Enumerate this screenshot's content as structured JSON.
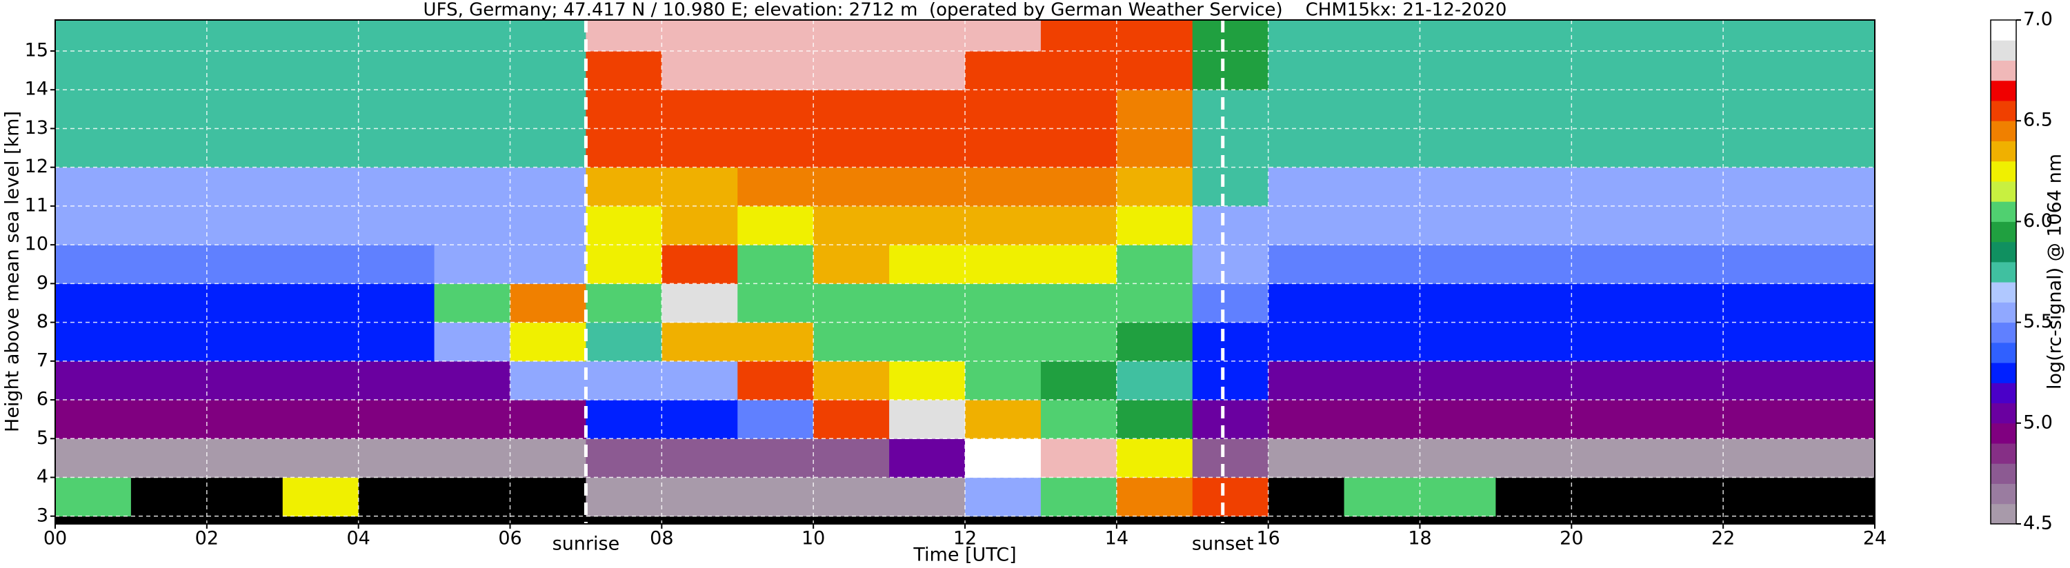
{
  "chart_data": {
    "type": "heatmap",
    "title": "UFS, Germany; 47.417 N / 10.980 E; elevation: 2712 m  (operated by German Weather Service)    CHM15kx: 21-12-2020",
    "x_label": "Time [UTC]",
    "y_label": "Height above mean sea level [km]",
    "colorbar_label": "log(rc-signal) @ 1064 nm",
    "xlim": [
      0,
      24
    ],
    "ylim": [
      2.8,
      15.8
    ],
    "xticks": [
      {
        "value": 0,
        "label": "00"
      },
      {
        "value": 2,
        "label": "02"
      },
      {
        "value": 4,
        "label": "04"
      },
      {
        "value": 6,
        "label": "06"
      },
      {
        "value": 8,
        "label": "08"
      },
      {
        "value": 10,
        "label": "10"
      },
      {
        "value": 12,
        "label": "12"
      },
      {
        "value": 14,
        "label": "14"
      },
      {
        "value": 16,
        "label": "16"
      },
      {
        "value": 18,
        "label": "18"
      },
      {
        "value": 20,
        "label": "20"
      },
      {
        "value": 22,
        "label": "22"
      },
      {
        "value": 24,
        "label": "24"
      }
    ],
    "yticks": [
      3,
      4,
      5,
      6,
      7,
      8,
      9,
      10,
      11,
      12,
      13,
      14,
      15
    ],
    "grid": true,
    "clim": [
      4.5,
      7
    ],
    "cticks": [
      4.5,
      {
        "value": 5,
        "label": "5.0"
      },
      5.5,
      {
        "value": 6,
        "label": "6.0"
      },
      6.5,
      {
        "value": 7,
        "label": "7.0"
      }
    ],
    "under_color": "#000000",
    "colormap": [
      "#a89aaa",
      "#9a7ca0",
      "#8c5a92",
      "#862f86",
      "#800080",
      "#6a00a0",
      "#4a00c8",
      "#0020ff",
      "#3060ff",
      "#6080ff",
      "#90a8ff",
      "#b0c8ff",
      "#40c0a0",
      "#109060",
      "#20a040",
      "#50d070",
      "#c8f040",
      "#f0f000",
      "#f0b000",
      "#f08000",
      "#f04000",
      "#f00000",
      "#f0b8b8",
      "#e0e0e0",
      "#ffffff"
    ],
    "annotations": [
      {
        "label": "sunrise",
        "x": 7.0
      },
      {
        "label": "sunset",
        "x": 15.4
      }
    ],
    "x": [
      0.5,
      1.5,
      2.5,
      3.5,
      4.5,
      5.5,
      6.5,
      7.5,
      8.5,
      9.5,
      10.5,
      11.5,
      12.5,
      13.5,
      14.5,
      15.5,
      16.5,
      17.5,
      18.5,
      19.5,
      20.5,
      21.5,
      22.5,
      23.5
    ],
    "y": [
      3.5,
      4.5,
      5.5,
      6.5,
      7.5,
      8.5,
      9.5,
      10.5,
      11.5,
      12.5,
      13.5,
      14.5,
      15.5
    ],
    "z": [
      [
        6.0,
        4.4,
        4.4,
        6.2,
        4.4,
        4.4,
        4.4,
        4.6,
        4.5,
        4.5,
        4.5,
        4.5,
        5.6,
        6.0,
        6.4,
        6.5,
        4.4,
        6.0,
        6.0,
        4.4,
        4.4,
        4.4,
        4.4,
        4.4
      ],
      [
        4.6,
        4.6,
        4.6,
        4.6,
        4.6,
        4.6,
        4.6,
        4.8,
        4.7,
        4.7,
        4.8,
        5.0,
        6.9,
        6.7,
        6.2,
        4.7,
        4.6,
        4.6,
        4.6,
        4.6,
        4.6,
        4.6,
        4.6,
        4.6
      ],
      [
        4.9,
        4.9,
        4.9,
        4.9,
        4.9,
        4.9,
        4.9,
        5.2,
        5.2,
        5.4,
        6.6,
        6.8,
        6.3,
        6.1,
        5.9,
        5.0,
        4.9,
        4.9,
        4.9,
        4.9,
        4.9,
        4.9,
        4.9,
        4.9
      ],
      [
        5.1,
        5.1,
        5.1,
        5.1,
        5.1,
        5.1,
        5.6,
        5.5,
        5.6,
        6.5,
        6.3,
        6.2,
        6.0,
        5.9,
        5.8,
        5.2,
        5.1,
        5.1,
        5.1,
        5.1,
        5.1,
        5.1,
        5.1,
        5.1
      ],
      [
        5.2,
        5.2,
        5.2,
        5.2,
        5.2,
        5.6,
        6.2,
        5.7,
        6.3,
        6.3,
        6.0,
        6.0,
        6.0,
        6.0,
        5.9,
        5.3,
        5.2,
        5.2,
        5.2,
        5.2,
        5.2,
        5.2,
        5.2,
        5.2
      ],
      [
        5.3,
        5.3,
        5.3,
        5.3,
        5.3,
        6.0,
        6.4,
        6.0,
        6.8,
        6.0,
        6.1,
        6.1,
        6.1,
        6.1,
        6.0,
        5.4,
        5.3,
        5.3,
        5.3,
        5.3,
        5.3,
        5.3,
        5.3,
        5.3
      ],
      [
        5.4,
        5.4,
        5.4,
        5.4,
        5.4,
        5.5,
        5.6,
        6.2,
        6.6,
        6.1,
        6.3,
        6.2,
        6.2,
        6.2,
        6.1,
        5.5,
        5.4,
        5.4,
        5.4,
        5.4,
        5.4,
        5.4,
        5.4,
        5.4
      ],
      [
        5.5,
        5.5,
        5.5,
        5.5,
        5.5,
        5.5,
        5.5,
        6.2,
        6.3,
        6.2,
        6.3,
        6.3,
        6.3,
        6.3,
        6.2,
        5.6,
        5.5,
        5.5,
        5.5,
        5.5,
        5.5,
        5.5,
        5.5,
        5.5
      ],
      [
        5.6,
        5.6,
        5.6,
        5.6,
        5.6,
        5.6,
        5.6,
        6.3,
        6.3,
        6.4,
        6.4,
        6.4,
        6.4,
        6.4,
        6.3,
        5.7,
        5.6,
        5.6,
        5.6,
        5.6,
        5.6,
        5.6,
        5.6,
        5.6
      ],
      [
        5.7,
        5.7,
        5.7,
        5.7,
        5.7,
        5.7,
        5.7,
        6.5,
        6.5,
        6.5,
        6.5,
        6.5,
        6.5,
        6.5,
        6.4,
        5.8,
        5.7,
        5.7,
        5.7,
        5.7,
        5.7,
        5.7,
        5.7,
        5.7
      ],
      [
        5.7,
        5.7,
        5.7,
        5.7,
        5.7,
        5.7,
        5.7,
        6.6,
        6.6,
        6.6,
        6.6,
        6.6,
        6.6,
        6.5,
        6.4,
        5.8,
        5.7,
        5.7,
        5.7,
        5.7,
        5.7,
        5.7,
        5.7,
        5.7
      ],
      [
        5.8,
        5.8,
        5.8,
        5.8,
        5.8,
        5.8,
        5.8,
        6.6,
        6.7,
        6.7,
        6.7,
        6.7,
        6.6,
        6.6,
        6.5,
        5.9,
        5.8,
        5.8,
        5.8,
        5.8,
        5.8,
        5.8,
        5.8,
        5.8
      ],
      [
        5.8,
        5.8,
        5.8,
        5.8,
        5.8,
        5.8,
        5.8,
        6.7,
        6.7,
        6.7,
        6.7,
        6.7,
        6.7,
        6.6,
        6.5,
        5.9,
        5.8,
        5.8,
        5.8,
        5.8,
        5.8,
        5.8,
        5.8,
        5.8
      ]
    ]
  }
}
